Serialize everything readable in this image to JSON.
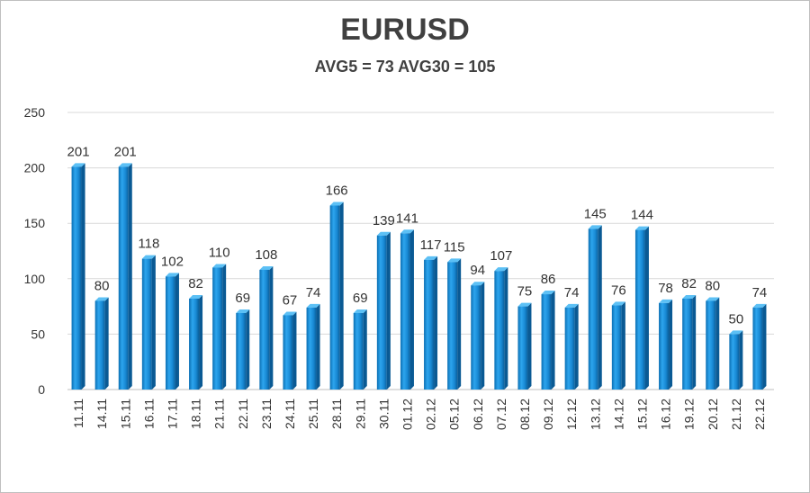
{
  "chart_data": {
    "type": "bar",
    "title": "EURUSD",
    "subtitle": "AVG5 = 73 AVG30 = 105",
    "xlabel": "",
    "ylabel": "",
    "ylim": [
      0,
      250
    ],
    "yticks": [
      0,
      50,
      100,
      150,
      200,
      250
    ],
    "grid": true,
    "categories": [
      "11.11",
      "14.11",
      "15.11",
      "16.11",
      "17.11",
      "18.11",
      "21.11",
      "22.11",
      "23.11",
      "24.11",
      "25.11",
      "28.11",
      "29.11",
      "30.11",
      "01.12",
      "02.12",
      "05.12",
      "06.12",
      "07.12",
      "08.12",
      "09.12",
      "12.12",
      "13.12",
      "14.12",
      "15.12",
      "16.12",
      "19.12",
      "20.12",
      "21.12",
      "22.12"
    ],
    "values": [
      201,
      80,
      201,
      118,
      102,
      82,
      110,
      69,
      108,
      67,
      74,
      166,
      69,
      139,
      141,
      117,
      115,
      94,
      107,
      75,
      86,
      74,
      145,
      76,
      144,
      78,
      82,
      80,
      50,
      74
    ],
    "bar_color": "#1a8fd8"
  }
}
